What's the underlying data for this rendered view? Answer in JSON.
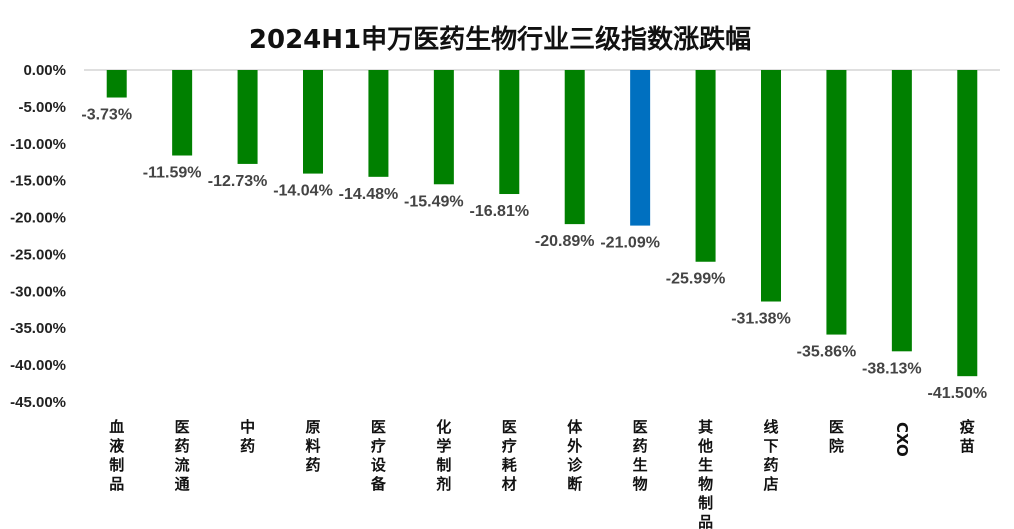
{
  "chart_data": {
    "type": "bar",
    "title": "2024H1申万医药生物行业三级指数涨跌幅",
    "xlabel": "",
    "ylabel": "",
    "ylim": [
      -45,
      0
    ],
    "yticks": [
      0,
      -5,
      -10,
      -15,
      -20,
      -25,
      -30,
      -35,
      -40,
      -45
    ],
    "ytick_labels": [
      "0.00%",
      "-5.00%",
      "-10.00%",
      "-15.00%",
      "-20.00%",
      "-25.00%",
      "-30.00%",
      "-35.00%",
      "-40.00%",
      "-45.00%"
    ],
    "categories": [
      "血液制品",
      "医药流通",
      "中药",
      "原料药",
      "医疗设备",
      "化学制剂",
      "医疗耗材",
      "体外诊断",
      "医药生物",
      "其他生物制品",
      "线下药店",
      "医院",
      "CXO",
      "疫苗"
    ],
    "values": [
      -3.73,
      -11.59,
      -12.73,
      -14.04,
      -14.48,
      -15.49,
      -16.81,
      -20.89,
      -21.09,
      -25.99,
      -31.38,
      -35.86,
      -38.13,
      -41.5
    ],
    "data_labels": [
      "-3.73%",
      "-11.59%",
      "-12.73%",
      "-14.04%",
      "-14.48%",
      "-15.49%",
      "-16.81%",
      "-20.89%",
      "-21.09%",
      "-25.99%",
      "-31.38%",
      "-35.86%",
      "-38.13%",
      "-41.50%"
    ],
    "highlight_index": 8,
    "colors": {
      "bar": "#008000",
      "highlight": "#0070C0",
      "axis": "#bfbfbf",
      "label": "#444444"
    },
    "grid": false,
    "legend": "none"
  }
}
